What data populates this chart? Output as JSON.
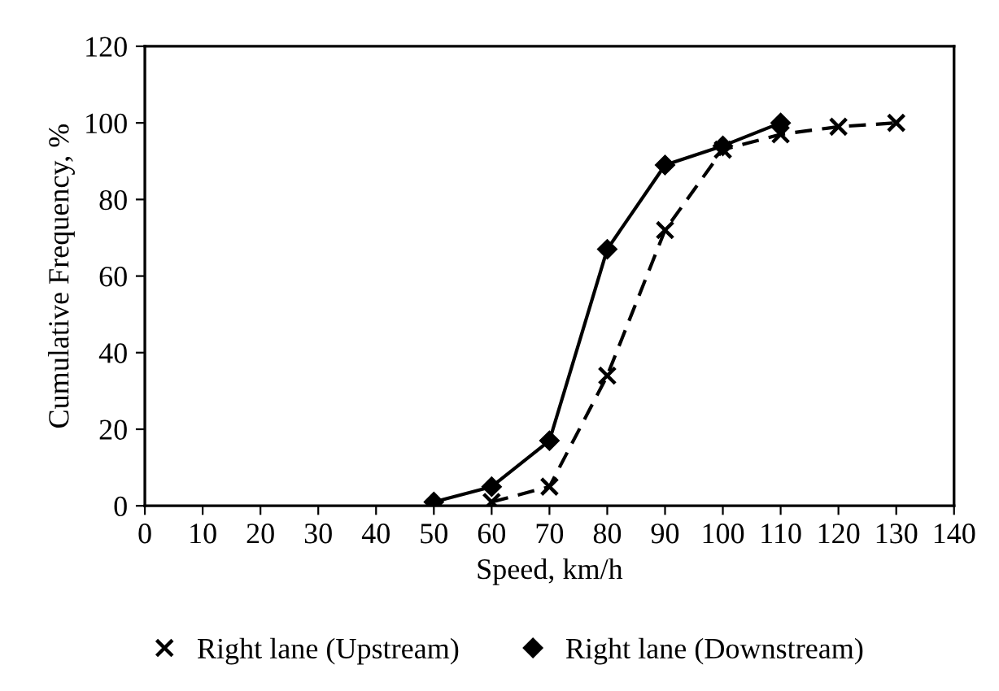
{
  "chart_data": {
    "type": "line",
    "xlabel": "Speed, km/h",
    "ylabel": "Cumulative Frequency, %",
    "xlim": [
      0,
      140
    ],
    "xticks": [
      0,
      10,
      20,
      30,
      40,
      50,
      60,
      70,
      80,
      90,
      100,
      110,
      120,
      130,
      140
    ],
    "ylim": [
      0,
      120
    ],
    "yticks": [
      0,
      20,
      40,
      60,
      80,
      100,
      120
    ],
    "grid": false,
    "legend": "bottom",
    "series": [
      {
        "name": "Right lane (Upstream)",
        "color": "#000000",
        "marker": "cross",
        "line_style": "dashed",
        "x": [
          60,
          70,
          80,
          90,
          100,
          110,
          120,
          130
        ],
        "values": [
          1,
          5,
          34,
          72,
          93,
          97,
          99,
          100
        ]
      },
      {
        "name": "Right lane (Downstream)",
        "color": "#000000",
        "marker": "diamond",
        "line_style": "solid",
        "x": [
          50,
          60,
          70,
          80,
          90,
          100,
          110
        ],
        "values": [
          1,
          5,
          17,
          67,
          89,
          94,
          100
        ]
      }
    ]
  }
}
